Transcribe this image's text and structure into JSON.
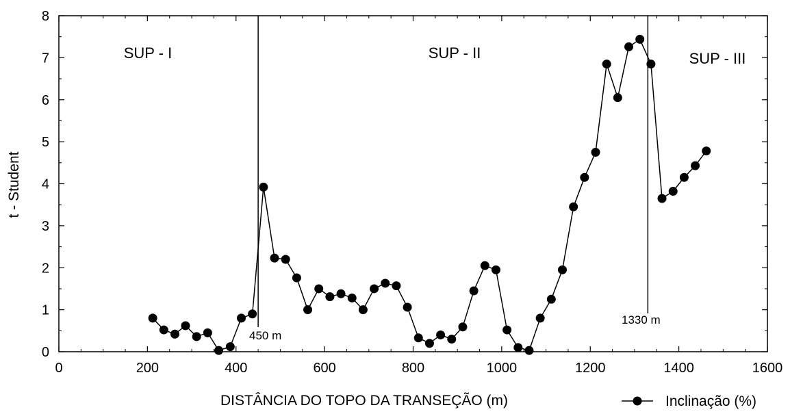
{
  "chart_data": {
    "type": "line",
    "title": "",
    "xlabel": "DISTÂNCIA DO TOPO DA TRANSEÇÃO (m)",
    "ylabel": "t - Student",
    "xlim": [
      0,
      1600
    ],
    "ylim": [
      0,
      8
    ],
    "x_ticks": [
      "0",
      "200",
      "400",
      "600",
      "800",
      "1000",
      "1200",
      "1400",
      "1600"
    ],
    "y_ticks": [
      "0",
      "1",
      "2",
      "3",
      "4",
      "5",
      "6",
      "7",
      "8"
    ],
    "grid": false,
    "legend_position": "bottom-right",
    "series": [
      {
        "name": "Inclinação (%)",
        "color": "#000000",
        "marker": "filled-circle",
        "points": [
          [
            212,
            0.8
          ],
          [
            237,
            0.52
          ],
          [
            262,
            0.42
          ],
          [
            286,
            0.62
          ],
          [
            311,
            0.36
          ],
          [
            336,
            0.45
          ],
          [
            361,
            0.03
          ],
          [
            387,
            0.12
          ],
          [
            412,
            0.8
          ],
          [
            437,
            0.9
          ],
          [
            462,
            3.92
          ],
          [
            487,
            2.23
          ],
          [
            512,
            2.2
          ],
          [
            537,
            1.76
          ],
          [
            562,
            1.0
          ],
          [
            587,
            1.5
          ],
          [
            612,
            1.31
          ],
          [
            637,
            1.38
          ],
          [
            662,
            1.28
          ],
          [
            687,
            1.0
          ],
          [
            712,
            1.5
          ],
          [
            737,
            1.63
          ],
          [
            762,
            1.57
          ],
          [
            787,
            1.06
          ],
          [
            812,
            0.33
          ],
          [
            837,
            0.2
          ],
          [
            862,
            0.4
          ],
          [
            887,
            0.3
          ],
          [
            912,
            0.59
          ],
          [
            937,
            1.45
          ],
          [
            962,
            2.05
          ],
          [
            987,
            1.95
          ],
          [
            1012,
            0.52
          ],
          [
            1037,
            0.1
          ],
          [
            1062,
            0.03
          ],
          [
            1087,
            0.8
          ],
          [
            1112,
            1.25
          ],
          [
            1137,
            1.95
          ],
          [
            1162,
            3.45
          ],
          [
            1187,
            4.15
          ],
          [
            1212,
            4.75
          ],
          [
            1237,
            6.85
          ],
          [
            1262,
            6.05
          ],
          [
            1287,
            7.26
          ],
          [
            1312,
            7.44
          ],
          [
            1337,
            6.85
          ],
          [
            1362,
            3.65
          ],
          [
            1387,
            3.82
          ],
          [
            1412,
            4.15
          ],
          [
            1437,
            4.43
          ],
          [
            1462,
            4.78
          ]
        ]
      }
    ],
    "dividers": [
      {
        "x": 450,
        "label": "450 m"
      },
      {
        "x": 1330,
        "label": "1330 m"
      }
    ],
    "regions": [
      {
        "label": "SUP - I"
      },
      {
        "label": "SUP - II"
      },
      {
        "label": "SUP - III"
      }
    ]
  }
}
